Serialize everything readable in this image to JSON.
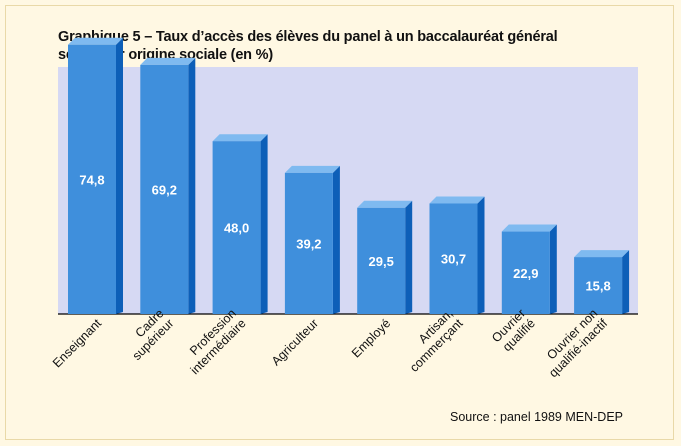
{
  "title_line1": "Graphique 5 – Taux d’accès des élèves du panel à un baccalauréat général",
  "title_line2": "selon leur origine sociale (en %)",
  "source": "Source : panel 1989 MEN-DEP",
  "colors": {
    "plot_bg": "#d6d9f3",
    "bar_front": "#3f8fdc",
    "bar_top": "#7fbaf0",
    "bar_side": "#0d5fb8",
    "baseline": "#000000"
  },
  "chart_data": {
    "type": "bar",
    "title": "Graphique 5 – Taux d’accès des élèves du panel à un baccalauréat général selon leur origine sociale (en %)",
    "xlabel": "",
    "ylabel": "",
    "ylim": [
      0,
      80
    ],
    "categories": [
      [
        "Enseignant"
      ],
      [
        "Cadre",
        "supérieur"
      ],
      [
        "Profession",
        "intermédiaire"
      ],
      [
        "Agriculteur"
      ],
      [
        "Employé"
      ],
      [
        "Artisan,",
        "commerçant"
      ],
      [
        "Ouvrier",
        "qualifié"
      ],
      [
        "Ouvrier non",
        "qualifié-inactif"
      ]
    ],
    "values": [
      74.8,
      69.2,
      48.0,
      39.2,
      29.5,
      30.7,
      22.9,
      15.8
    ],
    "value_labels": [
      "74,8",
      "69,2",
      "48,0",
      "39,2",
      "29,5",
      "30,7",
      "22,9",
      "15,8"
    ]
  }
}
